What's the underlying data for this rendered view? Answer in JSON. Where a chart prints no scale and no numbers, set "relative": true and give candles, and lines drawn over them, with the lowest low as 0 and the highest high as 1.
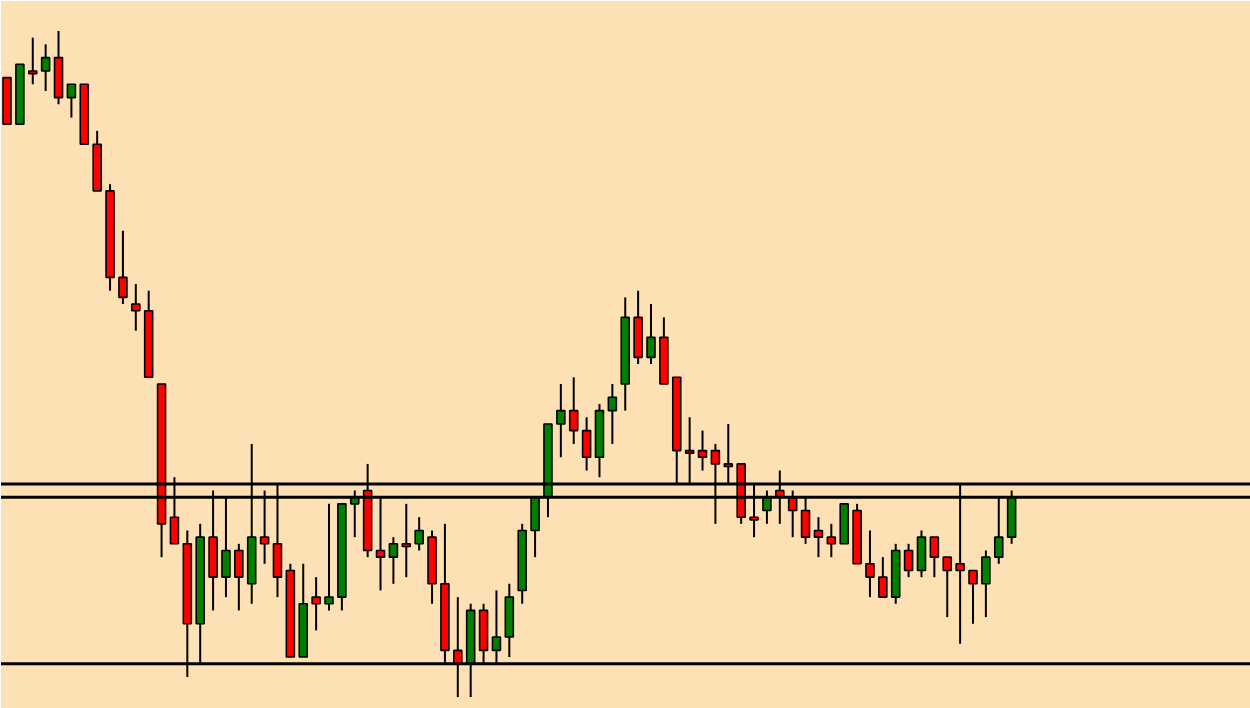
{
  "chart_data": {
    "type": "candlestick",
    "relative": true,
    "categories": [
      null,
      null,
      null,
      null,
      null,
      null,
      null,
      null,
      null,
      null,
      null,
      null,
      null,
      null,
      null,
      null,
      null,
      null,
      null,
      null,
      null,
      null,
      null,
      null,
      null,
      null,
      null,
      null,
      null,
      null,
      null,
      null,
      null,
      null,
      null,
      null,
      null,
      null,
      null,
      null,
      null,
      null,
      null,
      null,
      null,
      null,
      null,
      null,
      null,
      null,
      null,
      null,
      null,
      null,
      null,
      null,
      null,
      null,
      null,
      null,
      null,
      null,
      null,
      null,
      null,
      null,
      null,
      null,
      null,
      null,
      null,
      null,
      null,
      null,
      null,
      null,
      null,
      null,
      null
    ],
    "ohlc": [
      [
        0.93,
        0.93,
        0.86,
        0.86
      ],
      [
        0.86,
        0.95,
        0.86,
        0.95
      ],
      [
        0.94,
        0.99,
        0.92,
        0.94
      ],
      [
        0.94,
        0.98,
        0.91,
        0.96
      ],
      [
        0.96,
        1.0,
        0.89,
        0.9
      ],
      [
        0.9,
        0.92,
        0.87,
        0.92
      ],
      [
        0.92,
        0.92,
        0.83,
        0.83
      ],
      [
        0.83,
        0.85,
        0.76,
        0.76
      ],
      [
        0.76,
        0.77,
        0.61,
        0.63
      ],
      [
        0.63,
        0.7,
        0.59,
        0.6
      ],
      [
        0.59,
        0.62,
        0.55,
        0.58
      ],
      [
        0.58,
        0.61,
        0.48,
        0.48
      ],
      [
        0.47,
        0.47,
        0.21,
        0.26
      ],
      [
        0.27,
        0.33,
        0.23,
        0.23
      ],
      [
        0.23,
        0.25,
        0.03,
        0.11
      ],
      [
        0.11,
        0.26,
        0.05,
        0.24
      ],
      [
        0.24,
        0.31,
        0.13,
        0.18
      ],
      [
        0.18,
        0.3,
        0.15,
        0.22
      ],
      [
        0.22,
        0.23,
        0.13,
        0.18
      ],
      [
        0.17,
        0.38,
        0.14,
        0.24
      ],
      [
        0.24,
        0.31,
        0.2,
        0.23
      ],
      [
        0.23,
        0.32,
        0.15,
        0.18
      ],
      [
        0.19,
        0.2,
        0.06,
        0.06
      ],
      [
        0.06,
        0.2,
        0.06,
        0.14
      ],
      [
        0.15,
        0.18,
        0.1,
        0.14
      ],
      [
        0.14,
        0.29,
        0.13,
        0.15
      ],
      [
        0.15,
        0.29,
        0.13,
        0.29
      ],
      [
        0.29,
        0.31,
        0.24,
        0.3
      ],
      [
        0.31,
        0.35,
        0.21,
        0.22
      ],
      [
        0.22,
        0.3,
        0.16,
        0.21
      ],
      [
        0.21,
        0.24,
        0.17,
        0.23
      ],
      [
        0.23,
        0.29,
        0.18,
        0.23
      ],
      [
        0.23,
        0.27,
        0.22,
        0.25
      ],
      [
        0.24,
        0.25,
        0.14,
        0.17
      ],
      [
        0.17,
        0.26,
        0.05,
        0.07
      ],
      [
        0.07,
        0.15,
        0.0,
        0.05
      ],
      [
        0.05,
        0.14,
        0.0,
        0.13
      ],
      [
        0.13,
        0.14,
        0.05,
        0.07
      ],
      [
        0.07,
        0.16,
        0.05,
        0.09
      ],
      [
        0.09,
        0.17,
        0.06,
        0.15
      ],
      [
        0.16,
        0.26,
        0.14,
        0.25
      ],
      [
        0.25,
        0.3,
        0.21,
        0.3
      ],
      [
        0.3,
        0.41,
        0.27,
        0.41
      ],
      [
        0.41,
        0.47,
        0.36,
        0.43
      ],
      [
        0.43,
        0.48,
        0.38,
        0.4
      ],
      [
        0.4,
        0.42,
        0.34,
        0.36
      ],
      [
        0.36,
        0.44,
        0.33,
        0.43
      ],
      [
        0.43,
        0.47,
        0.38,
        0.45
      ],
      [
        0.47,
        0.6,
        0.43,
        0.57
      ],
      [
        0.57,
        0.61,
        0.5,
        0.51
      ],
      [
        0.51,
        0.59,
        0.5,
        0.54
      ],
      [
        0.54,
        0.57,
        0.47,
        0.47
      ],
      [
        0.48,
        0.48,
        0.32,
        0.37
      ],
      [
        0.37,
        0.42,
        0.32,
        0.37
      ],
      [
        0.37,
        0.4,
        0.34,
        0.36
      ],
      [
        0.37,
        0.38,
        0.26,
        0.35
      ],
      [
        0.35,
        0.41,
        0.32,
        0.35
      ],
      [
        0.35,
        0.35,
        0.26,
        0.27
      ],
      [
        0.27,
        0.32,
        0.24,
        0.27
      ],
      [
        0.28,
        0.31,
        0.26,
        0.3
      ],
      [
        0.31,
        0.34,
        0.26,
        0.3
      ],
      [
        0.3,
        0.31,
        0.24,
        0.28
      ],
      [
        0.28,
        0.3,
        0.23,
        0.24
      ],
      [
        0.25,
        0.27,
        0.21,
        0.24
      ],
      [
        0.24,
        0.26,
        0.21,
        0.23
      ],
      [
        0.23,
        0.29,
        0.23,
        0.29
      ],
      [
        0.28,
        0.29,
        0.2,
        0.2
      ],
      [
        0.2,
        0.25,
        0.15,
        0.18
      ],
      [
        0.18,
        0.21,
        0.15,
        0.15
      ],
      [
        0.15,
        0.23,
        0.14,
        0.22
      ],
      [
        0.22,
        0.23,
        0.18,
        0.19
      ],
      [
        0.19,
        0.25,
        0.18,
        0.24
      ],
      [
        0.24,
        0.24,
        0.18,
        0.21
      ],
      [
        0.21,
        0.21,
        0.12,
        0.19
      ],
      [
        0.2,
        0.32,
        0.08,
        0.19
      ],
      [
        0.19,
        0.19,
        0.11,
        0.17
      ],
      [
        0.17,
        0.22,
        0.12,
        0.21
      ],
      [
        0.21,
        0.3,
        0.2,
        0.24
      ],
      [
        0.24,
        0.31,
        0.23,
        0.3
      ]
    ],
    "ref_lines": [
      {
        "axis": "y",
        "value": 0.32,
        "color": "#000000"
      },
      {
        "axis": "y",
        "value": 0.3,
        "color": "#000000"
      },
      {
        "axis": "y",
        "value": 0.05,
        "color": "#000000"
      }
    ]
  }
}
